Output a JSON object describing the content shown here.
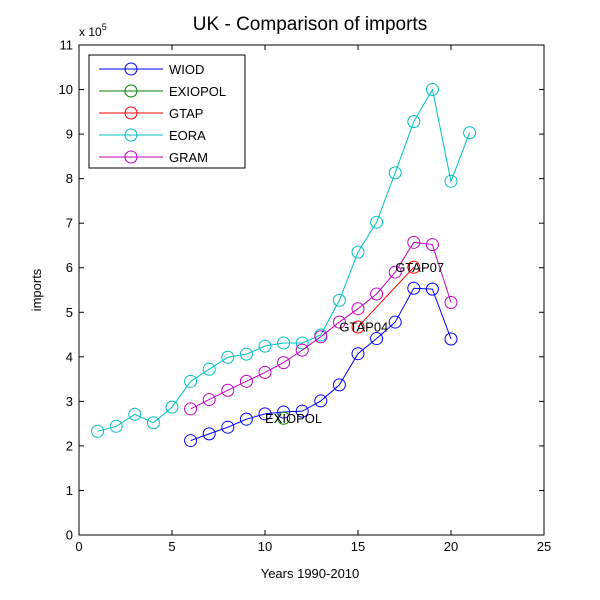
{
  "chart_data": {
    "type": "line",
    "title": "UK - Comparison of imports",
    "xlabel": "Years 1990-2010",
    "ylabel": "imports",
    "y_exponent_label": "x 10",
    "y_exponent_power": "5",
    "xlim": [
      0,
      25
    ],
    "ylim": [
      0,
      11
    ],
    "x_ticks": [
      0,
      5,
      10,
      15,
      20,
      25
    ],
    "y_ticks": [
      0,
      1,
      2,
      3,
      4,
      5,
      6,
      7,
      8,
      9,
      10,
      11
    ],
    "grid": false,
    "legend_position": "top-left",
    "marker": "circle",
    "series": [
      {
        "name": "WIOD",
        "color": "#0000ff",
        "points": [
          [
            6,
            2.12
          ],
          [
            7,
            2.27
          ],
          [
            8,
            2.42
          ],
          [
            9,
            2.6
          ],
          [
            10,
            2.72
          ],
          [
            11,
            2.76
          ],
          [
            12,
            2.78
          ],
          [
            13,
            3.01
          ],
          [
            14,
            3.37
          ],
          [
            15,
            4.07
          ],
          [
            16,
            4.41
          ],
          [
            17,
            4.78
          ],
          [
            18,
            5.54
          ],
          [
            19,
            5.52
          ],
          [
            20,
            4.4
          ]
        ]
      },
      {
        "name": "EXIOPOL",
        "color": "#008000",
        "points": [
          [
            11,
            2.62
          ]
        ]
      },
      {
        "name": "GTAP",
        "color": "#ff0000",
        "points": [
          [
            15,
            4.67
          ],
          [
            18,
            6.01
          ]
        ]
      },
      {
        "name": "EORA",
        "color": "#00bfbf",
        "points": [
          [
            1,
            2.33
          ],
          [
            2,
            2.44
          ],
          [
            3,
            2.71
          ],
          [
            4,
            2.52
          ],
          [
            5,
            2.87
          ],
          [
            6,
            3.45
          ],
          [
            7,
            3.72
          ],
          [
            8,
            3.99
          ],
          [
            9,
            4.06
          ],
          [
            10,
            4.24
          ],
          [
            11,
            4.31
          ],
          [
            12,
            4.31
          ],
          [
            13,
            4.49
          ],
          [
            14,
            5.27
          ],
          [
            15,
            6.35
          ],
          [
            16,
            7.02
          ],
          [
            17,
            8.13
          ],
          [
            18,
            9.28
          ],
          [
            19,
            10.0
          ],
          [
            20,
            7.94
          ],
          [
            21,
            9.03
          ]
        ]
      },
      {
        "name": "GRAM",
        "color": "#bf00bf",
        "points": [
          [
            6,
            2.83
          ],
          [
            7,
            3.04
          ],
          [
            8,
            3.25
          ],
          [
            9,
            3.45
          ],
          [
            10,
            3.65
          ],
          [
            11,
            3.87
          ],
          [
            12,
            4.15
          ],
          [
            13,
            4.45
          ],
          [
            14,
            4.78
          ],
          [
            15,
            5.08
          ],
          [
            16,
            5.41
          ],
          [
            17,
            5.9
          ],
          [
            18,
            6.57
          ],
          [
            19,
            6.52
          ],
          [
            20,
            5.22
          ]
        ]
      }
    ],
    "annotations": [
      {
        "text": "EXIOPOL",
        "x": 10.0,
        "y": 2.62
      },
      {
        "text": "GTAP04",
        "x": 14.0,
        "y": 4.67
      },
      {
        "text": "GTAP07",
        "x": 17.0,
        "y": 6.01
      }
    ]
  }
}
